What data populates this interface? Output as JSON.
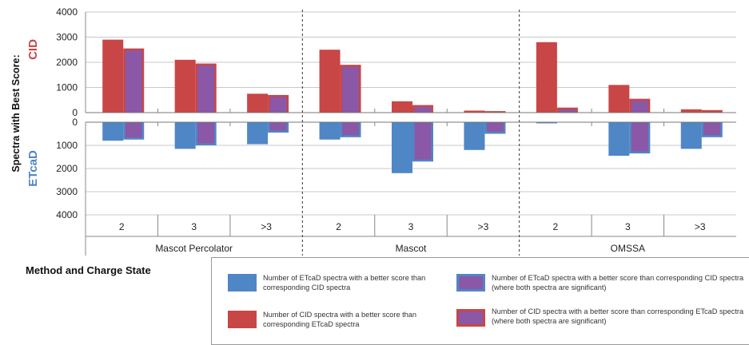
{
  "chart_data": {
    "type": "bar",
    "title": "",
    "ylabel": "Spectra with Best Score:",
    "xlabel": "Method and Charge State",
    "panel_labels": {
      "top": "CID",
      "bottom": "ETcaD"
    },
    "top_ylim": [
      0,
      4000
    ],
    "bottom_ylim": [
      0,
      4000
    ],
    "top_ticks": [
      "4000",
      "3000",
      "2000",
      "1000",
      "0"
    ],
    "bottom_ticks": [
      "0",
      "1000",
      "2000",
      "3000",
      "4000"
    ],
    "groups": [
      {
        "name": "Mascot Percolator",
        "categories": [
          "2",
          "3",
          ">3"
        ]
      },
      {
        "name": "Mascot",
        "categories": [
          "2",
          "3",
          ">3"
        ]
      },
      {
        "name": "OMSSA",
        "categories": [
          "2",
          "3",
          ">3"
        ]
      }
    ],
    "series": [
      {
        "name": "Number of ETcaD spectra with a better score than corresponding  CID spectra",
        "panel": "bottom",
        "color": "#4f86c6",
        "values": [
          800,
          1150,
          950,
          750,
          2200,
          1200,
          50,
          1450,
          1150
        ]
      },
      {
        "name": "Number of ETcaD spectra with a better score than corresponding CID spectra (where both spectra are significant)",
        "panel": "bottom",
        "color": "#8a58a6",
        "values": [
          750,
          1000,
          450,
          650,
          1700,
          500,
          0,
          1350,
          650
        ]
      },
      {
        "name": "Number of CID spectra with a better score than corresponding ETcaD spectra",
        "panel": "top",
        "color": "#c94646",
        "values": [
          2900,
          2100,
          750,
          2500,
          450,
          80,
          2800,
          1100,
          130
        ]
      },
      {
        "name": "Number of CID spectra with a better score than corresponding ETcaD spectra (where both spectra are significant)",
        "panel": "top",
        "color": "#8a58a6",
        "values": [
          2550,
          1950,
          700,
          1900,
          300,
          60,
          200,
          550,
          100
        ]
      }
    ],
    "grid": true,
    "legend_position": "bottom-right"
  },
  "legend": {
    "etcad": "Number of ETcaD spectra with a better score than corresponding  CID spectra",
    "etcad_sig": "Number of ETcaD spectra with a better score than corresponding CID spectra (where both spectra are significant)",
    "cid": "Number of CID spectra with a better score than corresponding ETcaD spectra",
    "cid_sig": "Number of CID spectra with a better score than corresponding ETcaD spectra (where both spectra are significant)"
  }
}
